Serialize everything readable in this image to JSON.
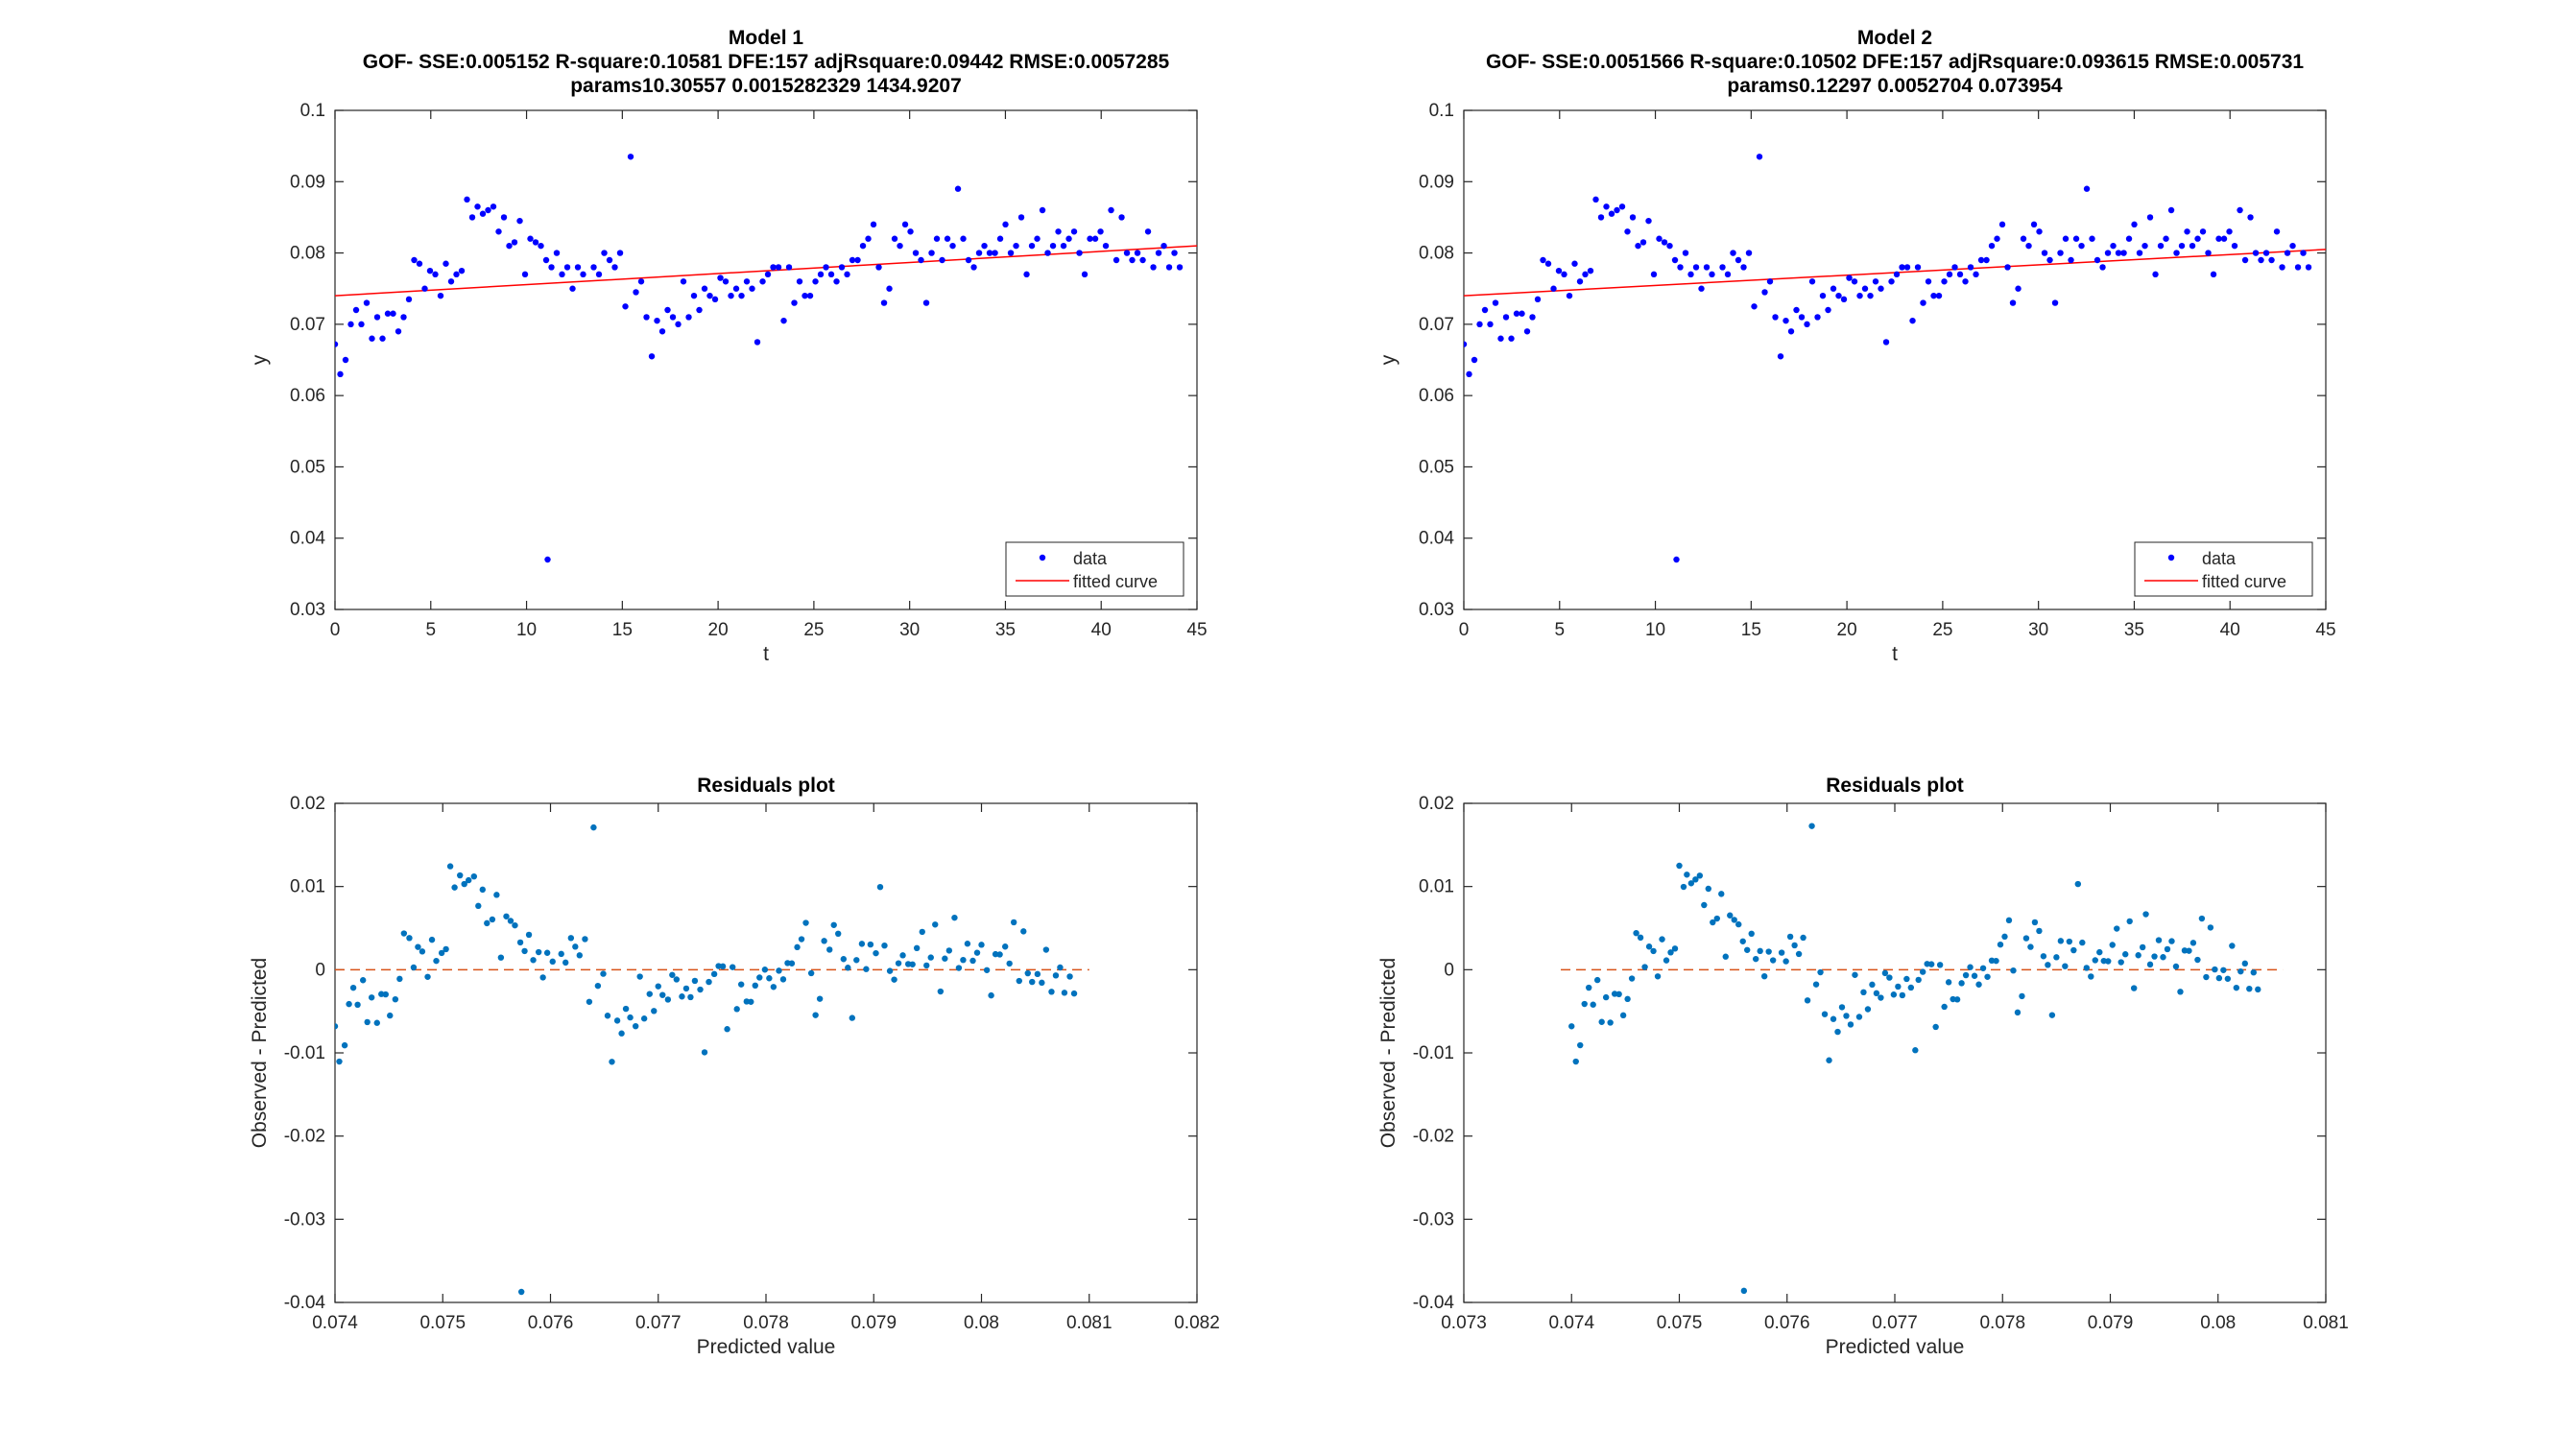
{
  "figure": {
    "background": "#ffffff"
  },
  "chart_data": [
    {
      "type": "scatter",
      "title": "Model 1",
      "subtitle_1": "GOF- SSE:0.005152 R-square:0.10581 DFE:157 adjRsquare:0.09442 RMSE:0.0057285",
      "subtitle_2": "params10.30557    0.0015282329       1434.9207",
      "xlabel": "t",
      "ylabel": "y",
      "xlim": [
        0,
        45
      ],
      "ylim": [
        0.03,
        0.1
      ],
      "xticks": [
        0,
        5,
        10,
        15,
        20,
        25,
        30,
        35,
        40,
        45
      ],
      "xtick_labels": [
        "0",
        "5",
        "10",
        "15",
        "20",
        "25",
        "30",
        "35",
        "40",
        "45"
      ],
      "yticks": [
        0.03,
        0.04,
        0.05,
        0.06,
        0.07,
        0.08,
        0.09,
        0.1
      ],
      "ytick_labels": [
        "0.03",
        "0.04",
        "0.05",
        "0.06",
        "0.07",
        "0.08",
        "0.09",
        "0.1"
      ],
      "grid": false,
      "legend": {
        "position": "bottom-right",
        "entries": [
          "data",
          "fitted curve"
        ]
      },
      "series": [
        {
          "name": "data",
          "color": "#0000ff",
          "x": [],
          "y": []
        },
        {
          "name": "fitted curve",
          "color": "#ff0000",
          "x": [
            0,
            45
          ],
          "y": [
            0.074,
            0.081
          ]
        }
      ]
    },
    {
      "type": "scatter",
      "title": "Model 2",
      "subtitle_1": "GOF- SSE:0.0051566 R-square:0.10502 DFE:157 adjRsquare:0.093615 RMSE:0.005731",
      "subtitle_2": "params0.12297    0.0052704    0.073954",
      "xlabel": "t",
      "ylabel": "y",
      "xlim": [
        0,
        45
      ],
      "ylim": [
        0.03,
        0.1
      ],
      "xticks": [
        0,
        5,
        10,
        15,
        20,
        25,
        30,
        35,
        40,
        45
      ],
      "xtick_labels": [
        "0",
        "5",
        "10",
        "15",
        "20",
        "25",
        "30",
        "35",
        "40",
        "45"
      ],
      "yticks": [
        0.03,
        0.04,
        0.05,
        0.06,
        0.07,
        0.08,
        0.09,
        0.1
      ],
      "ytick_labels": [
        "0.03",
        "0.04",
        "0.05",
        "0.06",
        "0.07",
        "0.08",
        "0.09",
        "0.1"
      ],
      "grid": false,
      "legend": {
        "position": "bottom-right",
        "entries": [
          "data",
          "fitted curve"
        ]
      },
      "series": [
        {
          "name": "data",
          "color": "#0000ff",
          "x": [],
          "y": []
        },
        {
          "name": "fitted curve",
          "color": "#ff0000",
          "x": [
            0,
            45
          ],
          "y": [
            0.074,
            0.0805
          ]
        }
      ]
    },
    {
      "type": "scatter",
      "title": "Residuals plot",
      "xlabel": "Predicted value",
      "ylabel": "Observed - Predicted",
      "xlim": [
        0.074,
        0.082
      ],
      "ylim": [
        -0.04,
        0.02
      ],
      "xticks": [
        0.074,
        0.075,
        0.076,
        0.077,
        0.078,
        0.079,
        0.08,
        0.081,
        0.082
      ],
      "xtick_labels": [
        "0.074",
        "0.075",
        "0.076",
        "0.077",
        "0.078",
        "0.079",
        "0.08",
        "0.081",
        "0.082"
      ],
      "yticks": [
        -0.04,
        -0.03,
        -0.02,
        -0.01,
        0,
        0.01,
        0.02
      ],
      "ytick_labels": [
        "-0.04",
        "-0.03",
        "-0.02",
        "-0.01",
        "0",
        "0.01",
        "0.02"
      ],
      "grid": false,
      "series": [
        {
          "color": "#0072bd",
          "x": [],
          "y": []
        },
        {
          "color": "#d95319",
          "x": [
            0.074,
            0.081
          ],
          "y": [
            0,
            0
          ]
        }
      ]
    },
    {
      "type": "scatter",
      "title": "Residuals plot",
      "xlabel": "Predicted value",
      "ylabel": "Observed - Predicted",
      "xlim": [
        0.073,
        0.081
      ],
      "ylim": [
        -0.04,
        0.02
      ],
      "xticks": [
        0.073,
        0.074,
        0.075,
        0.076,
        0.077,
        0.078,
        0.079,
        0.08,
        0.081
      ],
      "xtick_labels": [
        "0.073",
        "0.074",
        "0.075",
        "0.076",
        "0.077",
        "0.078",
        "0.079",
        "0.08",
        "0.081"
      ],
      "yticks": [
        -0.04,
        -0.03,
        -0.02,
        -0.01,
        0,
        0.01,
        0.02
      ],
      "ytick_labels": [
        "-0.04",
        "-0.03",
        "-0.02",
        "-0.01",
        "0",
        "0.01",
        "0.02"
      ],
      "grid": false,
      "series": [
        {
          "color": "#0072bd",
          "x": [],
          "y": []
        },
        {
          "color": "#d95319",
          "x": [
            0.0739,
            0.0806
          ],
          "y": [
            0,
            0
          ]
        }
      ]
    }
  ]
}
